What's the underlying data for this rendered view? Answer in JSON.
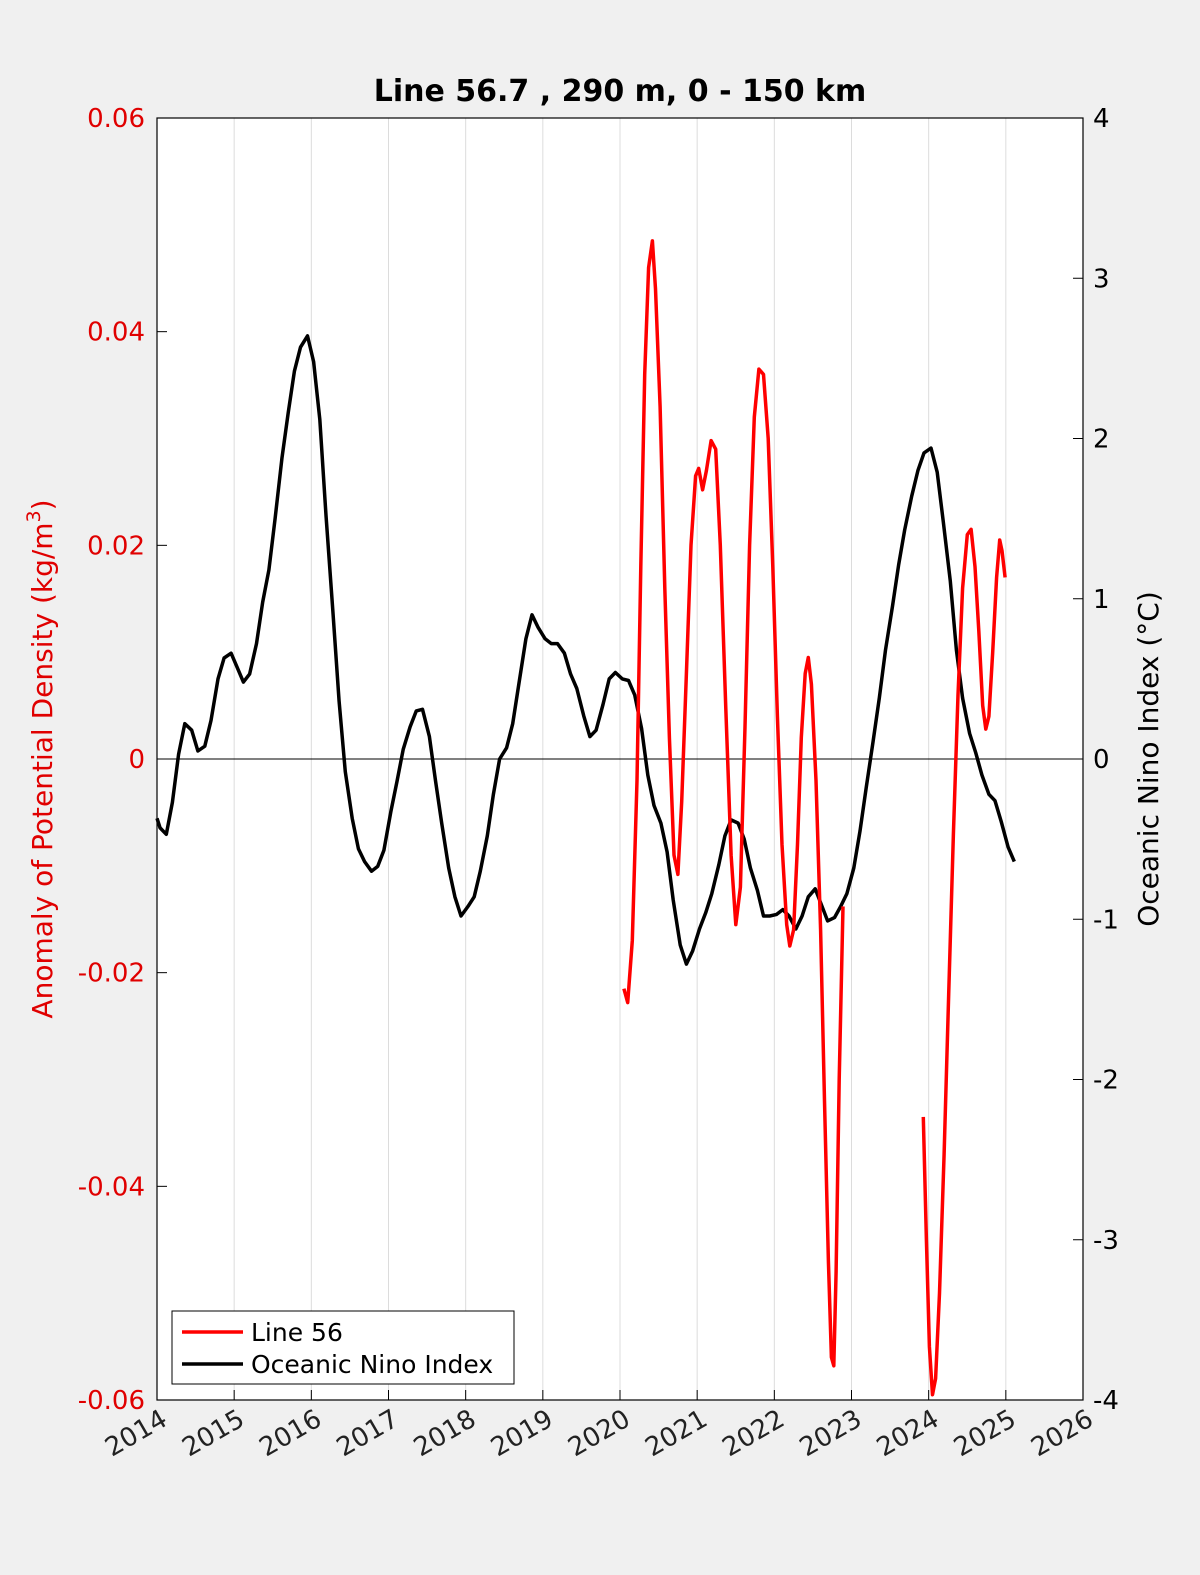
{
  "chart_data": {
    "type": "line",
    "title": "Line 56.7 , 290 m, 0 - 150 km",
    "ylabel_left_prefix": "Anomaly of Potential Density (kg/m",
    "ylabel_left_sup": "3",
    "ylabel_left_suffix": ")",
    "ylabel_right": "Oceanic Nino Index (°C)",
    "xlim": [
      2014,
      2026
    ],
    "ylim_left": [
      -0.06,
      0.06
    ],
    "ylim_right": [
      -4,
      4
    ],
    "xticks": [
      "2014",
      "2015",
      "2016",
      "2017",
      "2018",
      "2019",
      "2020",
      "2021",
      "2022",
      "2023",
      "2024",
      "2025",
      "2026"
    ],
    "yticks_left": [
      "-0.06",
      "-0.04",
      "-0.02",
      "0",
      "0.02",
      "0.04",
      "0.06"
    ],
    "yticks_right": [
      "-4",
      "-3",
      "-2",
      "-1",
      "0",
      "1",
      "2",
      "3",
      "4"
    ],
    "grid": "vertical",
    "legend_position": "bottom-left",
    "colors": {
      "line56": "#ff0000",
      "oni": "#000000",
      "left_axis": "#e00000",
      "right_axis": "#000000"
    },
    "series": [
      {
        "name": "Line 56",
        "axis": "left",
        "color": "#ff0000",
        "segments": [
          [
            [
              2020.05,
              -0.0215
            ],
            [
              2020.1,
              -0.0228
            ],
            [
              2020.16,
              -0.017
            ],
            [
              2020.22,
              -0.002
            ],
            [
              2020.27,
              0.018
            ],
            [
              2020.32,
              0.036
            ],
            [
              2020.37,
              0.046
            ],
            [
              2020.42,
              0.0485
            ],
            [
              2020.46,
              0.044
            ],
            [
              2020.52,
              0.033
            ],
            [
              2020.58,
              0.016
            ],
            [
              2020.64,
              0.002
            ],
            [
              2020.7,
              -0.009
            ],
            [
              2020.75,
              -0.0108
            ],
            [
              2020.8,
              -0.004
            ],
            [
              2020.86,
              0.008
            ],
            [
              2020.92,
              0.02
            ],
            [
              2020.98,
              0.0265
            ],
            [
              2021.02,
              0.0272
            ],
            [
              2021.07,
              0.0252
            ],
            [
              2021.12,
              0.027
            ],
            [
              2021.18,
              0.0298
            ],
            [
              2021.24,
              0.029
            ],
            [
              2021.3,
              0.02
            ],
            [
              2021.37,
              0.005
            ],
            [
              2021.44,
              -0.009
            ],
            [
              2021.5,
              -0.0155
            ],
            [
              2021.56,
              -0.012
            ],
            [
              2021.62,
              0.003
            ],
            [
              2021.68,
              0.02
            ],
            [
              2021.74,
              0.032
            ],
            [
              2021.8,
              0.0365
            ],
            [
              2021.86,
              0.036
            ],
            [
              2021.92,
              0.03
            ],
            [
              2021.98,
              0.018
            ],
            [
              2022.04,
              0.004
            ],
            [
              2022.1,
              -0.008
            ],
            [
              2022.16,
              -0.0155
            ],
            [
              2022.2,
              -0.0175
            ],
            [
              2022.25,
              -0.016
            ],
            [
              2022.3,
              -0.008
            ],
            [
              2022.35,
              0.002
            ],
            [
              2022.4,
              0.008
            ],
            [
              2022.44,
              0.0095
            ],
            [
              2022.48,
              0.007
            ],
            [
              2022.54,
              -0.002
            ],
            [
              2022.6,
              -0.016
            ],
            [
              2022.65,
              -0.032
            ],
            [
              2022.7,
              -0.047
            ],
            [
              2022.74,
              -0.056
            ],
            [
              2022.77,
              -0.0568
            ],
            [
              2022.8,
              -0.048
            ],
            [
              2022.84,
              -0.03
            ],
            [
              2022.89,
              -0.0138
            ]
          ],
          [
            [
              2023.93,
              -0.0335
            ],
            [
              2023.97,
              -0.045
            ],
            [
              2024.01,
              -0.055
            ],
            [
              2024.05,
              -0.0595
            ],
            [
              2024.09,
              -0.058
            ],
            [
              2024.14,
              -0.05
            ],
            [
              2024.2,
              -0.037
            ],
            [
              2024.26,
              -0.022
            ],
            [
              2024.32,
              -0.007
            ],
            [
              2024.38,
              0.006
            ],
            [
              2024.44,
              0.016
            ],
            [
              2024.5,
              0.021
            ],
            [
              2024.55,
              0.0215
            ],
            [
              2024.6,
              0.018
            ],
            [
              2024.65,
              0.012
            ],
            [
              2024.7,
              0.005
            ],
            [
              2024.74,
              0.0028
            ],
            [
              2024.78,
              0.004
            ],
            [
              2024.83,
              0.01
            ],
            [
              2024.88,
              0.017
            ],
            [
              2024.92,
              0.0205
            ],
            [
              2024.95,
              0.0195
            ],
            [
              2024.99,
              0.017
            ]
          ]
        ]
      },
      {
        "name": "Oceanic Nino Index",
        "axis": "right",
        "color": "#000000",
        "points": [
          [
            2014.0,
            -0.37
          ],
          [
            2014.04,
            -0.43
          ],
          [
            2014.12,
            -0.47
          ],
          [
            2014.2,
            -0.27
          ],
          [
            2014.28,
            0.03
          ],
          [
            2014.36,
            0.22
          ],
          [
            2014.45,
            0.18
          ],
          [
            2014.53,
            0.05
          ],
          [
            2014.62,
            0.08
          ],
          [
            2014.7,
            0.24
          ],
          [
            2014.79,
            0.5
          ],
          [
            2014.87,
            0.63
          ],
          [
            2014.96,
            0.66
          ],
          [
            2015.04,
            0.57
          ],
          [
            2015.12,
            0.48
          ],
          [
            2015.2,
            0.53
          ],
          [
            2015.29,
            0.72
          ],
          [
            2015.37,
            0.98
          ],
          [
            2015.45,
            1.18
          ],
          [
            2015.53,
            1.5
          ],
          [
            2015.62,
            1.88
          ],
          [
            2015.7,
            2.16
          ],
          [
            2015.78,
            2.42
          ],
          [
            2015.86,
            2.57
          ],
          [
            2015.95,
            2.64
          ],
          [
            2016.03,
            2.48
          ],
          [
            2016.11,
            2.12
          ],
          [
            2016.19,
            1.52
          ],
          [
            2016.28,
            0.92
          ],
          [
            2016.36,
            0.36
          ],
          [
            2016.44,
            -0.08
          ],
          [
            2016.53,
            -0.37
          ],
          [
            2016.61,
            -0.56
          ],
          [
            2016.69,
            -0.64
          ],
          [
            2016.78,
            -0.7
          ],
          [
            2016.86,
            -0.67
          ],
          [
            2016.94,
            -0.57
          ],
          [
            2017.03,
            -0.33
          ],
          [
            2017.11,
            -0.14
          ],
          [
            2017.19,
            0.06
          ],
          [
            2017.28,
            0.2
          ],
          [
            2017.36,
            0.3
          ],
          [
            2017.44,
            0.31
          ],
          [
            2017.53,
            0.14
          ],
          [
            2017.61,
            -0.14
          ],
          [
            2017.69,
            -0.4
          ],
          [
            2017.78,
            -0.68
          ],
          [
            2017.86,
            -0.86
          ],
          [
            2017.94,
            -0.98
          ],
          [
            2018.03,
            -0.92
          ],
          [
            2018.11,
            -0.86
          ],
          [
            2018.19,
            -0.7
          ],
          [
            2018.28,
            -0.48
          ],
          [
            2018.36,
            -0.22
          ],
          [
            2018.44,
            0.0
          ],
          [
            2018.53,
            0.07
          ],
          [
            2018.61,
            0.22
          ],
          [
            2018.69,
            0.47
          ],
          [
            2018.78,
            0.75
          ],
          [
            2018.86,
            0.9
          ],
          [
            2018.94,
            0.82
          ],
          [
            2019.03,
            0.75
          ],
          [
            2019.11,
            0.72
          ],
          [
            2019.19,
            0.72
          ],
          [
            2019.28,
            0.66
          ],
          [
            2019.36,
            0.53
          ],
          [
            2019.44,
            0.44
          ],
          [
            2019.53,
            0.27
          ],
          [
            2019.61,
            0.14
          ],
          [
            2019.69,
            0.18
          ],
          [
            2019.78,
            0.34
          ],
          [
            2019.86,
            0.5
          ],
          [
            2019.94,
            0.54
          ],
          [
            2020.03,
            0.5
          ],
          [
            2020.11,
            0.49
          ],
          [
            2020.19,
            0.4
          ],
          [
            2020.28,
            0.19
          ],
          [
            2020.36,
            -0.1
          ],
          [
            2020.44,
            -0.29
          ],
          [
            2020.53,
            -0.4
          ],
          [
            2020.61,
            -0.58
          ],
          [
            2020.69,
            -0.88
          ],
          [
            2020.78,
            -1.16
          ],
          [
            2020.86,
            -1.28
          ],
          [
            2020.94,
            -1.2
          ],
          [
            2021.03,
            -1.06
          ],
          [
            2021.11,
            -0.96
          ],
          [
            2021.19,
            -0.84
          ],
          [
            2021.28,
            -0.66
          ],
          [
            2021.36,
            -0.48
          ],
          [
            2021.44,
            -0.38
          ],
          [
            2021.53,
            -0.4
          ],
          [
            2021.61,
            -0.5
          ],
          [
            2021.69,
            -0.68
          ],
          [
            2021.78,
            -0.82
          ],
          [
            2021.86,
            -0.98
          ],
          [
            2021.94,
            -0.98
          ],
          [
            2022.03,
            -0.97
          ],
          [
            2022.11,
            -0.94
          ],
          [
            2022.19,
            -0.98
          ],
          [
            2022.28,
            -1.06
          ],
          [
            2022.36,
            -0.98
          ],
          [
            2022.44,
            -0.86
          ],
          [
            2022.53,
            -0.81
          ],
          [
            2022.61,
            -0.91
          ],
          [
            2022.69,
            -1.01
          ],
          [
            2022.78,
            -0.99
          ],
          [
            2022.86,
            -0.92
          ],
          [
            2022.94,
            -0.84
          ],
          [
            2023.03,
            -0.68
          ],
          [
            2023.11,
            -0.45
          ],
          [
            2023.19,
            -0.18
          ],
          [
            2023.28,
            0.11
          ],
          [
            2023.36,
            0.38
          ],
          [
            2023.44,
            0.68
          ],
          [
            2023.53,
            0.95
          ],
          [
            2023.61,
            1.21
          ],
          [
            2023.69,
            1.43
          ],
          [
            2023.78,
            1.64
          ],
          [
            2023.86,
            1.8
          ],
          [
            2023.94,
            1.91
          ],
          [
            2024.03,
            1.94
          ],
          [
            2024.11,
            1.79
          ],
          [
            2024.19,
            1.48
          ],
          [
            2024.28,
            1.11
          ],
          [
            2024.36,
            0.68
          ],
          [
            2024.44,
            0.38
          ],
          [
            2024.53,
            0.16
          ],
          [
            2024.61,
            0.04
          ],
          [
            2024.69,
            -0.1
          ],
          [
            2024.78,
            -0.22
          ],
          [
            2024.86,
            -0.26
          ],
          [
            2024.94,
            -0.39
          ],
          [
            2025.03,
            -0.55
          ],
          [
            2025.11,
            -0.64
          ]
        ]
      }
    ]
  }
}
